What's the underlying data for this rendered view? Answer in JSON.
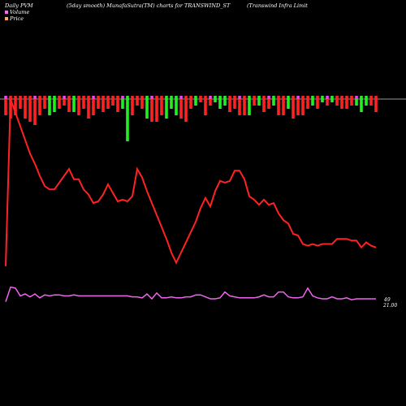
{
  "header": {
    "left": "Daily PVM",
    "middle": "(5day smooth) MunafaSutra(TM) charts for TRANSWIND_ST",
    "right": "(Transwind Infra  Limit"
  },
  "legend": [
    {
      "label": "Volume",
      "color": "#ff66ff"
    },
    {
      "label": "Price",
      "color": "#ffaa66"
    }
  ],
  "colors": {
    "price": "#ff2222",
    "volume": "#ee66ee",
    "bar_up": "#22ee22",
    "bar_down": "#ff2222",
    "bar_accent": "#ee44ee",
    "axis": "#cccccc"
  },
  "chart_data": {
    "type": "line",
    "title": "Daily PVM",
    "price_axis_labels": [
      "49",
      "21.00"
    ],
    "x": [
      1,
      2,
      3,
      4,
      5,
      6,
      7,
      8,
      9,
      10,
      11,
      12,
      13,
      14,
      15,
      16,
      17,
      18,
      19,
      20,
      21,
      22,
      23,
      24,
      25,
      26,
      27,
      28,
      29,
      30,
      31,
      32,
      33,
      34,
      35,
      36,
      37,
      38,
      39,
      40,
      41,
      42,
      43,
      44,
      45,
      46,
      47,
      48,
      49,
      50,
      51,
      52,
      53,
      54,
      55,
      56,
      57,
      58,
      59,
      60,
      61,
      62,
      63,
      64,
      65,
      66,
      67,
      68,
      69,
      70,
      71,
      72,
      73,
      74,
      75,
      76,
      77
    ],
    "series": [
      {
        "name": "Price",
        "values": [
          22,
          120,
          112,
          104,
          96,
          88,
          82,
          75,
          69,
          67,
          67,
          71,
          75,
          79,
          73,
          73,
          67,
          64,
          59,
          60,
          64,
          70,
          65,
          60,
          61,
          60,
          63,
          79,
          74,
          66,
          59,
          52,
          45,
          38,
          30,
          24,
          30,
          36,
          42,
          48,
          56,
          62,
          57,
          66,
          72,
          71,
          72,
          78,
          78,
          73,
          63,
          61,
          58,
          61,
          58,
          59,
          53,
          49,
          47,
          41,
          40,
          35,
          34,
          35,
          34,
          35,
          35,
          35,
          38,
          38,
          38,
          37,
          37,
          33,
          36,
          34,
          33
        ]
      },
      {
        "name": "Volume",
        "values": [
          2,
          17,
          16,
          8,
          10,
          7,
          10,
          6,
          9,
          8,
          9,
          9,
          8,
          8,
          9,
          8,
          8,
          8,
          8,
          8,
          8,
          8,
          8,
          8,
          8,
          8,
          7,
          7,
          6,
          10,
          5,
          11,
          6,
          6,
          7,
          6,
          6,
          7,
          7,
          9,
          9,
          7,
          5,
          5,
          6,
          12,
          8,
          7,
          6,
          6,
          6,
          6,
          7,
          9,
          7,
          7,
          12,
          12,
          7,
          6,
          6,
          7,
          16,
          8,
          6,
          5,
          5,
          7,
          5,
          5,
          6,
          4,
          5,
          5,
          5,
          5,
          5
        ]
      },
      {
        "name": "PVM",
        "values": [
          -5,
          -6,
          -5,
          -3,
          -6,
          -7,
          -8,
          -5,
          -3,
          -5,
          -4,
          -3,
          -2,
          -4,
          -4,
          -5,
          -3,
          -6,
          -5,
          -3,
          -4,
          -3,
          -2,
          -4,
          -3,
          -13,
          -5,
          -2,
          -3,
          -6,
          -7,
          -7,
          -5,
          -6,
          -3,
          -5,
          -6,
          -7,
          -3,
          -2,
          -1,
          -5,
          -2,
          -1,
          -3,
          -2,
          -4,
          -3,
          -5,
          -5,
          -5,
          -2,
          -2,
          -4,
          -3,
          -2,
          -5,
          -5,
          -3,
          -6,
          -5,
          -5,
          -3,
          -2,
          -3,
          -1,
          -2,
          -1,
          -2,
          -3,
          -3,
          -2,
          -2,
          -4,
          -2,
          -2,
          -4
        ]
      }
    ]
  }
}
